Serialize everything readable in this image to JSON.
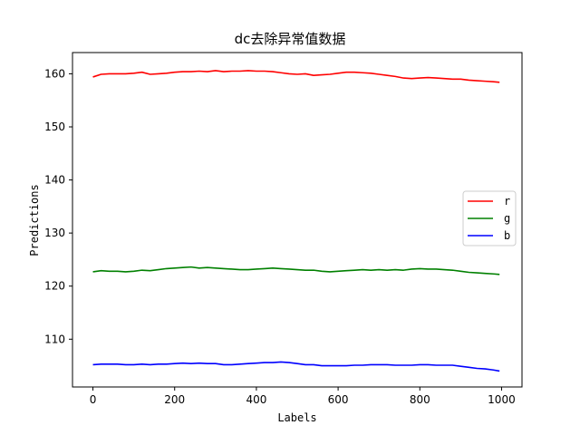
{
  "chart_data": {
    "type": "line",
    "title": "dc去除异常值数据",
    "xlabel": "Labels",
    "ylabel": "Predictions",
    "xlim": [
      -50,
      1050
    ],
    "ylim": [
      101,
      164
    ],
    "xticks": [
      0,
      200,
      400,
      600,
      800,
      1000
    ],
    "yticks": [
      110,
      120,
      130,
      140,
      150,
      160
    ],
    "grid": false,
    "legend_position": "center-right",
    "x": [
      0,
      20,
      40,
      60,
      80,
      100,
      120,
      140,
      160,
      180,
      200,
      220,
      240,
      260,
      280,
      300,
      320,
      340,
      360,
      380,
      400,
      420,
      440,
      460,
      480,
      500,
      520,
      540,
      560,
      580,
      600,
      620,
      640,
      660,
      680,
      700,
      720,
      740,
      760,
      780,
      800,
      820,
      840,
      860,
      880,
      900,
      920,
      940,
      960,
      980,
      995
    ],
    "series": [
      {
        "name": "r",
        "color": "#ff0000",
        "values": [
          159.4,
          159.9,
          160.0,
          160.0,
          160.0,
          160.1,
          160.3,
          159.9,
          160.0,
          160.1,
          160.3,
          160.4,
          160.4,
          160.5,
          160.4,
          160.6,
          160.4,
          160.5,
          160.5,
          160.6,
          160.5,
          160.5,
          160.4,
          160.2,
          160.0,
          159.9,
          160.0,
          159.7,
          159.8,
          159.9,
          160.1,
          160.3,
          160.3,
          160.2,
          160.1,
          159.9,
          159.7,
          159.5,
          159.2,
          159.1,
          159.2,
          159.3,
          159.2,
          159.1,
          159.0,
          159.0,
          158.8,
          158.7,
          158.6,
          158.5,
          158.4
        ]
      },
      {
        "name": "g",
        "color": "#008000",
        "values": [
          122.7,
          122.9,
          122.8,
          122.8,
          122.7,
          122.8,
          123.0,
          122.9,
          123.1,
          123.3,
          123.4,
          123.5,
          123.6,
          123.4,
          123.5,
          123.4,
          123.3,
          123.2,
          123.1,
          123.1,
          123.2,
          123.3,
          123.4,
          123.3,
          123.2,
          123.1,
          123.0,
          123.0,
          122.8,
          122.7,
          122.8,
          122.9,
          123.0,
          123.1,
          123.0,
          123.1,
          123.0,
          123.1,
          123.0,
          123.2,
          123.3,
          123.2,
          123.2,
          123.1,
          123.0,
          122.8,
          122.6,
          122.5,
          122.4,
          122.3,
          122.2
        ]
      },
      {
        "name": "b",
        "color": "#0000ff",
        "values": [
          105.2,
          105.3,
          105.3,
          105.3,
          105.2,
          105.2,
          105.3,
          105.2,
          105.3,
          105.3,
          105.4,
          105.5,
          105.4,
          105.5,
          105.4,
          105.4,
          105.2,
          105.2,
          105.3,
          105.4,
          105.5,
          105.6,
          105.6,
          105.7,
          105.6,
          105.4,
          105.2,
          105.2,
          105.0,
          105.0,
          105.0,
          105.0,
          105.1,
          105.1,
          105.2,
          105.2,
          105.2,
          105.1,
          105.1,
          105.1,
          105.2,
          105.2,
          105.1,
          105.1,
          105.1,
          104.9,
          104.7,
          104.5,
          104.4,
          104.2,
          104.0
        ]
      }
    ]
  }
}
